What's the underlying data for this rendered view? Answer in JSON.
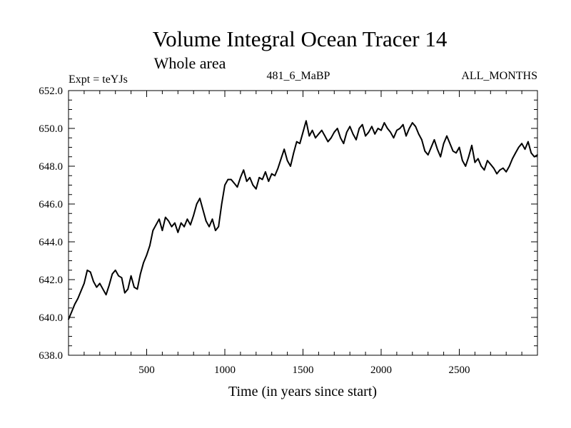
{
  "chart_data": {
    "type": "line",
    "title": "Volume Integral Ocean Tracer 14",
    "subtitle": "Whole area",
    "left_label": "Expt = teYJs",
    "center_label": "481_6_MaBP",
    "right_label": "ALL_MONTHS",
    "xlabel": "Time (in years since start)",
    "ylabel": "",
    "xlim": [
      0,
      3000
    ],
    "ylim": [
      638.0,
      652.0
    ],
    "x_ticks": [
      500,
      1000,
      1500,
      2000,
      2500
    ],
    "x_tick_labels": [
      "500",
      "1000",
      "1500",
      "2000",
      "2500"
    ],
    "y_ticks": [
      638.0,
      640.0,
      642.0,
      644.0,
      646.0,
      648.0,
      650.0,
      652.0
    ],
    "y_tick_labels": [
      "638.0",
      "640.0",
      "642.0",
      "644.0",
      "646.0",
      "648.0",
      "650.0",
      "652.0"
    ],
    "grid": false,
    "line_color": "#000000",
    "series": [
      {
        "name": "Volume Integral Ocean Tracer 14",
        "x": [
          0,
          20,
          40,
          60,
          80,
          100,
          120,
          140,
          160,
          180,
          200,
          220,
          240,
          260,
          280,
          300,
          320,
          340,
          360,
          380,
          400,
          420,
          440,
          460,
          480,
          500,
          520,
          540,
          560,
          580,
          600,
          620,
          640,
          660,
          680,
          700,
          720,
          740,
          760,
          780,
          800,
          820,
          840,
          860,
          880,
          900,
          920,
          940,
          960,
          980,
          1000,
          1020,
          1040,
          1060,
          1080,
          1100,
          1120,
          1140,
          1160,
          1180,
          1200,
          1220,
          1240,
          1260,
          1280,
          1300,
          1320,
          1340,
          1360,
          1380,
          1400,
          1420,
          1440,
          1460,
          1480,
          1500,
          1520,
          1540,
          1560,
          1580,
          1600,
          1620,
          1640,
          1660,
          1680,
          1700,
          1720,
          1740,
          1760,
          1780,
          1800,
          1820,
          1840,
          1860,
          1880,
          1900,
          1920,
          1940,
          1960,
          1980,
          2000,
          2020,
          2040,
          2060,
          2080,
          2100,
          2120,
          2140,
          2160,
          2180,
          2200,
          2220,
          2240,
          2260,
          2280,
          2300,
          2320,
          2340,
          2360,
          2380,
          2400,
          2420,
          2440,
          2460,
          2480,
          2500,
          2520,
          2540,
          2560,
          2580,
          2600,
          2620,
          2640,
          2660,
          2680,
          2700,
          2720,
          2740,
          2760,
          2780,
          2800,
          2820,
          2840,
          2860,
          2880,
          2900,
          2920,
          2940,
          2960,
          2980,
          3000
        ],
        "values": [
          639.9,
          640.3,
          640.7,
          641.0,
          641.4,
          641.8,
          642.5,
          642.4,
          641.9,
          641.6,
          641.8,
          641.5,
          641.2,
          641.7,
          642.3,
          642.5,
          642.2,
          642.1,
          641.3,
          641.5,
          642.2,
          641.6,
          641.5,
          642.3,
          642.9,
          643.3,
          643.8,
          644.6,
          644.9,
          645.2,
          644.6,
          645.3,
          645.1,
          644.8,
          645.0,
          644.5,
          645.0,
          644.8,
          645.2,
          644.9,
          645.4,
          646.0,
          646.3,
          645.7,
          645.1,
          644.8,
          645.2,
          644.6,
          644.8,
          646.0,
          647.0,
          647.3,
          647.3,
          647.1,
          646.9,
          647.4,
          647.8,
          647.2,
          647.4,
          647.0,
          646.8,
          647.4,
          647.3,
          647.7,
          647.2,
          647.6,
          647.5,
          647.9,
          648.4,
          648.9,
          648.3,
          648.0,
          648.7,
          649.3,
          649.2,
          649.8,
          650.4,
          649.6,
          649.9,
          649.5,
          649.7,
          649.9,
          649.6,
          649.3,
          649.5,
          649.8,
          650.0,
          649.5,
          649.2,
          649.8,
          650.1,
          649.7,
          649.4,
          650.0,
          650.2,
          649.6,
          649.8,
          650.1,
          649.7,
          650.0,
          649.9,
          650.3,
          650.0,
          649.8,
          649.5,
          649.9,
          650.0,
          650.2,
          649.6,
          650.0,
          650.3,
          650.1,
          649.7,
          649.4,
          648.8,
          648.6,
          649.0,
          649.4,
          648.9,
          648.5,
          649.2,
          649.6,
          649.2,
          648.8,
          648.7,
          649.0,
          648.3,
          648.0,
          648.5,
          649.1,
          648.2,
          648.4,
          648.0,
          647.8,
          648.3,
          648.1,
          647.9,
          647.6,
          647.8,
          647.9,
          647.7,
          648.0,
          648.4,
          648.7,
          649.0,
          649.2,
          648.9,
          649.3,
          648.7,
          648.5,
          648.6
        ]
      }
    ]
  }
}
